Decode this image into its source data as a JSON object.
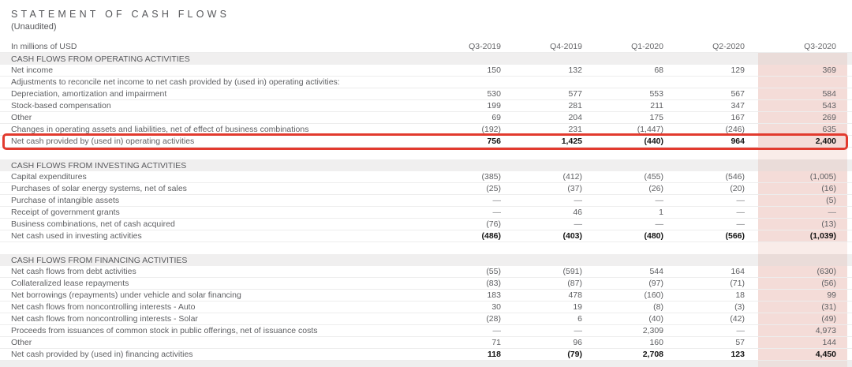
{
  "header": {
    "title": "STATEMENT OF CASH FLOWS",
    "subtitle": "(Unaudited)"
  },
  "colors": {
    "highlight_box_red": "#e23a2e",
    "highlight_column_pink": "#f4dcd8",
    "section_header_gray": "#f0efef",
    "body_text_gray": "#5e5f62",
    "total_text_black": "#141414"
  },
  "table": {
    "units_label": "In millions of USD",
    "columns": [
      "Q3-2019",
      "Q4-2019",
      "Q1-2020",
      "Q2-2020",
      "Q3-2020"
    ],
    "highlighted_column": "Q3-2020",
    "sections": [
      {
        "name": "CASH FLOWS FROM OPERATING ACTIVITIES",
        "rows": [
          {
            "label": "Net income",
            "values": [
              "150",
              "132",
              "68",
              "129",
              "369"
            ]
          },
          {
            "label": "Adjustments to reconcile net income to net cash provided by (used in) operating activities:",
            "values": [
              "",
              "",
              "",
              "",
              ""
            ]
          },
          {
            "label": "Depreciation, amortization and impairment",
            "values": [
              "530",
              "577",
              "553",
              "567",
              "584"
            ]
          },
          {
            "label": "Stock-based compensation",
            "values": [
              "199",
              "281",
              "211",
              "347",
              "543"
            ]
          },
          {
            "label": "Other",
            "values": [
              "69",
              "204",
              "175",
              "167",
              "269"
            ]
          },
          {
            "label": "Changes in operating assets and liabilities, net of effect of business combinations",
            "values": [
              "(192)",
              "231",
              "(1,447)",
              "(246)",
              "635"
            ]
          },
          {
            "label": "Net cash provided by (used in) operating activities",
            "values": [
              "756",
              "1,425",
              "(440)",
              "964",
              "2,400"
            ],
            "total": true,
            "highlight_box": true
          }
        ]
      },
      {
        "name": "CASH FLOWS FROM INVESTING ACTIVITIES",
        "rows": [
          {
            "label": "Capital expenditures",
            "values": [
              "(385)",
              "(412)",
              "(455)",
              "(546)",
              "(1,005)"
            ]
          },
          {
            "label": "Purchases of solar energy systems, net of sales",
            "values": [
              "(25)",
              "(37)",
              "(26)",
              "(20)",
              "(16)"
            ]
          },
          {
            "label": "Purchase of intangible assets",
            "values": [
              "—",
              "—",
              "—",
              "—",
              "(5)"
            ]
          },
          {
            "label": "Receipt of government grants",
            "values": [
              "—",
              "46",
              "1",
              "—",
              "—"
            ]
          },
          {
            "label": "Business combinations, net of cash acquired",
            "values": [
              "(76)",
              "—",
              "—",
              "—",
              "(13)"
            ]
          },
          {
            "label": "Net cash used in investing activities",
            "values": [
              "(486)",
              "(403)",
              "(480)",
              "(566)",
              "(1,039)"
            ],
            "total": true
          }
        ]
      },
      {
        "name": "CASH FLOWS FROM FINANCING ACTIVITIES",
        "rows": [
          {
            "label": "Net cash flows from debt activities",
            "values": [
              "(55)",
              "(591)",
              "544",
              "164",
              "(630)"
            ]
          },
          {
            "label": "Collateralized lease repayments",
            "values": [
              "(83)",
              "(87)",
              "(97)",
              "(71)",
              "(56)"
            ]
          },
          {
            "label": "Net borrowings (repayments) under vehicle and solar financing",
            "values": [
              "183",
              "478",
              "(160)",
              "18",
              "99"
            ]
          },
          {
            "label": "Net cash flows from noncontrolling interests - Auto",
            "values": [
              "30",
              "19",
              "(8)",
              "(3)",
              "(31)"
            ]
          },
          {
            "label": "Net cash flows from noncontrolling interests - Solar",
            "values": [
              "(28)",
              "6",
              "(40)",
              "(42)",
              "(49)"
            ]
          },
          {
            "label": "Proceeds from issuances of common stock in public offerings, net of issuance costs",
            "values": [
              "—",
              "—",
              "2,309",
              "—",
              "4,973"
            ]
          },
          {
            "label": "Other",
            "values": [
              "71",
              "96",
              "160",
              "57",
              "144"
            ]
          },
          {
            "label": "Net cash provided by (used in) financing activities",
            "values": [
              "118",
              "(79)",
              "2,708",
              "123",
              "4,450"
            ],
            "total": true
          }
        ]
      }
    ]
  }
}
